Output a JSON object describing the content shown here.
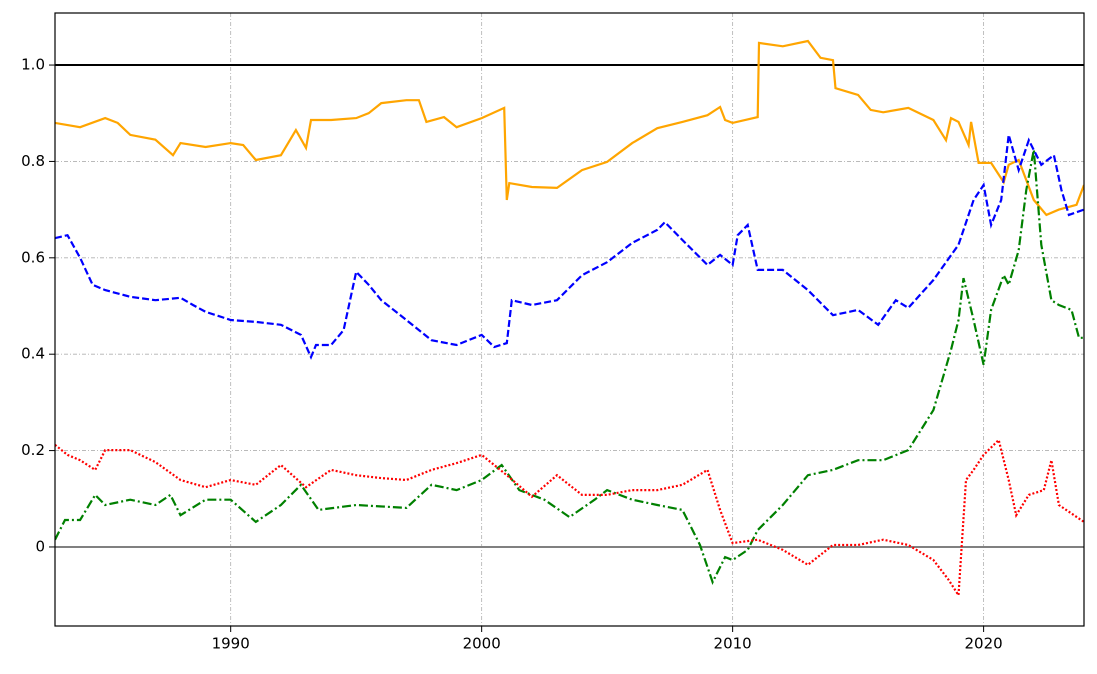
{
  "chart_data": {
    "type": "line",
    "xlim": [
      1983,
      2024
    ],
    "ylim": [
      -0.164,
      1.108
    ],
    "xticks": [
      1990,
      2000,
      2010,
      2020
    ],
    "yticks": [
      0.0,
      0.2,
      0.4,
      0.6,
      0.8,
      {
        "value": 1.0,
        "label": "1.0"
      }
    ],
    "grid": true,
    "hlines": [
      {
        "value": 1.0,
        "color": "#000000"
      },
      {
        "value": 0,
        "color": "#808080"
      }
    ],
    "series": [
      {
        "color": "#ffa500",
        "style": "solid",
        "x": [
          1983,
          1984,
          1985,
          1985.5,
          1986,
          1987,
          1987.7,
          1988,
          1989,
          1990,
          1990.5,
          1991,
          1992,
          1992.6,
          1993,
          1993.2,
          1994,
          1995,
          1995.5,
          1996,
          1997,
          1997.5,
          1997.8,
          1998.5,
          1999,
          2000,
          2000.9,
          2001,
          2001.1,
          2002,
          2003,
          2004,
          2005,
          2006,
          2007,
          2008,
          2009,
          2009.5,
          2009.7,
          2010,
          2011,
          2011.05,
          2012,
          2013,
          2013.5,
          2014,
          2014.1,
          2015,
          2015.5,
          2016,
          2017,
          2018,
          2018.5,
          2018.7,
          2019,
          2019.4,
          2019.5,
          2019.8,
          2020.3,
          2020.8,
          2021,
          2021.4,
          2022,
          2022.5,
          2023,
          2023.7,
          2024
        ],
        "values": [
          0.88,
          0.871,
          0.89,
          0.88,
          0.855,
          0.845,
          0.813,
          0.838,
          0.83,
          0.838,
          0.834,
          0.803,
          0.813,
          0.865,
          0.828,
          0.886,
          0.886,
          0.89,
          0.9,
          0.921,
          0.927,
          0.927,
          0.882,
          0.892,
          0.871,
          0.89,
          0.911,
          0.72,
          0.755,
          0.747,
          0.745,
          0.782,
          0.799,
          0.838,
          0.869,
          0.882,
          0.896,
          0.913,
          0.886,
          0.88,
          0.892,
          1.046,
          1.039,
          1.05,
          1.015,
          1.01,
          0.952,
          0.938,
          0.907,
          0.902,
          0.911,
          0.886,
          0.844,
          0.89,
          0.882,
          0.834,
          0.882,
          0.797,
          0.797,
          0.757,
          0.793,
          0.803,
          0.72,
          0.689,
          0.7,
          0.71,
          0.751
        ]
      },
      {
        "color": "#0000ff",
        "style": "dashed",
        "x": [
          1983,
          1983.5,
          1984,
          1984.5,
          1985,
          1986,
          1987,
          1988,
          1988.5,
          1989,
          1990,
          1991,
          1992,
          1992.8,
          1993.2,
          1993.4,
          1994,
          1994.5,
          1995,
          1995.5,
          1996,
          1997,
          1998,
          1999,
          2000,
          2000.5,
          2001,
          2001.2,
          2002,
          2003,
          2004,
          2005,
          2006,
          2007,
          2007.3,
          2008,
          2009,
          2009.5,
          2010,
          2010.2,
          2010.6,
          2011,
          2012,
          2013,
          2014,
          2015,
          2015.8,
          2016.5,
          2017,
          2018,
          2019,
          2019.6,
          2020,
          2020.3,
          2020.7,
          2021,
          2021.4,
          2021.8,
          2022.3,
          2022.8,
          2023.1,
          2023.4,
          2024
        ],
        "values": [
          0.641,
          0.647,
          0.6,
          0.544,
          0.533,
          0.519,
          0.512,
          0.517,
          0.502,
          0.488,
          0.471,
          0.467,
          0.461,
          0.44,
          0.394,
          0.419,
          0.419,
          0.45,
          0.571,
          0.544,
          0.512,
          0.471,
          0.429,
          0.419,
          0.44,
          0.415,
          0.423,
          0.512,
          0.502,
          0.512,
          0.564,
          0.591,
          0.631,
          0.658,
          0.674,
          0.637,
          0.585,
          0.606,
          0.585,
          0.647,
          0.668,
          0.575,
          0.575,
          0.533,
          0.481,
          0.492,
          0.461,
          0.512,
          0.496,
          0.554,
          0.627,
          0.72,
          0.751,
          0.668,
          0.72,
          0.855,
          0.782,
          0.844,
          0.793,
          0.813,
          0.741,
          0.689,
          0.7
        ]
      },
      {
        "color": "#008000",
        "style": "dashdot",
        "x": [
          1983,
          1983.4,
          1984,
          1984.6,
          1985,
          1986,
          1987,
          1987.6,
          1988,
          1989,
          1990,
          1991,
          1992,
          1992.8,
          1993.5,
          1995,
          1997,
          1998,
          1999,
          2000,
          2000.8,
          2001.5,
          2002.5,
          2003.5,
          2004.5,
          2005,
          2006,
          2007,
          2008,
          2008.7,
          2009.2,
          2009.7,
          2010,
          2010.6,
          2011,
          2012,
          2013,
          2014,
          2015,
          2016,
          2017,
          2018,
          2018.7,
          2019,
          2019.2,
          2019.6,
          2020,
          2020.3,
          2020.8,
          2021,
          2021.4,
          2021.7,
          2022,
          2022.3,
          2022.7,
          2023,
          2023.5,
          2023.8,
          2024
        ],
        "values": [
          0.015,
          0.056,
          0.056,
          0.108,
          0.087,
          0.098,
          0.087,
          0.108,
          0.066,
          0.098,
          0.098,
          0.052,
          0.087,
          0.129,
          0.077,
          0.087,
          0.081,
          0.129,
          0.118,
          0.139,
          0.17,
          0.118,
          0.098,
          0.062,
          0.098,
          0.118,
          0.098,
          0.087,
          0.077,
          0.004,
          -0.073,
          -0.021,
          -0.027,
          -0.006,
          0.035,
          0.087,
          0.149,
          0.16,
          0.18,
          0.18,
          0.201,
          0.284,
          0.409,
          0.471,
          0.558,
          0.471,
          0.378,
          0.492,
          0.564,
          0.544,
          0.616,
          0.741,
          0.824,
          0.627,
          0.512,
          0.502,
          0.492,
          0.434,
          0.434
        ]
      },
      {
        "color": "#ff0000",
        "style": "dotted",
        "x": [
          1983,
          1983.5,
          1984,
          1984.6,
          1985,
          1986,
          1987,
          1988,
          1989,
          1990,
          1991,
          1992,
          1993,
          1994,
          1995,
          1996,
          1997,
          1998,
          1999,
          2000,
          2000.5,
          2001,
          2002,
          2003,
          2004,
          2005,
          2006,
          2007,
          2008,
          2009,
          2009.5,
          2010,
          2011,
          2012,
          2013,
          2014,
          2015,
          2016,
          2017,
          2018,
          2018.6,
          2019,
          2019.3,
          2019.6,
          2020,
          2020.6,
          2021,
          2021.3,
          2021.8,
          2022.4,
          2022.7,
          2023,
          2023.6,
          2024
        ],
        "values": [
          0.212,
          0.191,
          0.18,
          0.16,
          0.201,
          0.201,
          0.176,
          0.139,
          0.124,
          0.139,
          0.129,
          0.17,
          0.124,
          0.16,
          0.149,
          0.143,
          0.139,
          0.16,
          0.174,
          0.191,
          0.17,
          0.149,
          0.104,
          0.149,
          0.108,
          0.108,
          0.118,
          0.118,
          0.129,
          0.16,
          0.077,
          0.008,
          0.015,
          -0.006,
          -0.037,
          0.004,
          0.004,
          0.015,
          0.004,
          -0.027,
          -0.068,
          -0.1,
          0.139,
          0.16,
          0.191,
          0.222,
          0.139,
          0.066,
          0.108,
          0.118,
          0.18,
          0.087,
          0.066,
          0.052
        ]
      }
    ]
  }
}
